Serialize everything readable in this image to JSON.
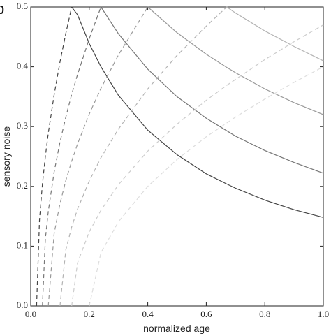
{
  "chart_data": {
    "type": "line",
    "panel_label": "b",
    "xlabel": "normalized age",
    "ylabel": "sensory noise",
    "xlim": [
      0,
      1
    ],
    "ylim": [
      0,
      0.5
    ],
    "xticks": [
      {
        "value": 0,
        "label": "0.0"
      },
      0.2,
      0.4,
      0.6,
      0.8,
      {
        "value": 1,
        "label": "1.0"
      }
    ],
    "yticks": [
      {
        "value": 0,
        "label": "0.0"
      },
      0.1,
      0.2,
      0.3,
      0.4,
      0.5
    ],
    "x": [
      0.02,
      0.03,
      0.04,
      0.05,
      0.06,
      0.08,
      0.1,
      0.12,
      0.14,
      0.16,
      0.2,
      0.24,
      0.3,
      0.4,
      0.5,
      0.6,
      0.67,
      0.7,
      0.8,
      0.9,
      1.0
    ],
    "series": [
      {
        "color": "#444444",
        "dashed": false,
        "values": [
          null,
          null,
          null,
          null,
          null,
          null,
          null,
          null,
          0.5,
          0.487,
          0.439,
          0.4,
          0.352,
          0.294,
          0.253,
          0.221,
          0.204,
          0.197,
          0.177,
          0.161,
          0.148
        ]
      },
      {
        "color": "#777777",
        "dashed": false,
        "values": [
          null,
          null,
          null,
          null,
          null,
          null,
          null,
          null,
          null,
          null,
          null,
          0.5,
          0.455,
          0.396,
          0.35,
          0.314,
          0.293,
          0.284,
          0.26,
          0.24,
          0.222
        ]
      },
      {
        "color": "#999999",
        "dashed": false,
        "values": [
          null,
          null,
          null,
          null,
          null,
          null,
          null,
          null,
          null,
          null,
          null,
          null,
          null,
          0.5,
          0.457,
          0.421,
          0.399,
          0.39,
          0.363,
          0.34,
          0.32
        ]
      },
      {
        "color": "#b3b3b3",
        "dashed": false,
        "values": [
          null,
          null,
          null,
          null,
          null,
          null,
          null,
          null,
          null,
          null,
          null,
          null,
          null,
          null,
          null,
          null,
          0.5,
          0.49,
          0.46,
          0.434,
          0.41
        ]
      },
      {
        "color": "#444444",
        "dashed": true,
        "values": [
          0,
          0.144,
          0.204,
          0.25,
          0.289,
          0.353,
          0.408,
          0.456,
          0.5,
          null,
          null,
          null,
          null,
          null,
          null,
          null,
          null,
          null,
          null,
          null,
          null
        ]
      },
      {
        "color": "#777777",
        "dashed": true,
        "values": [
          null,
          null,
          0,
          0.112,
          0.158,
          0.224,
          0.274,
          0.316,
          0.354,
          0.387,
          0.447,
          0.5,
          null,
          null,
          null,
          null,
          null,
          null,
          null,
          null,
          null
        ]
      },
      {
        "color": "#999999",
        "dashed": true,
        "values": [
          null,
          null,
          null,
          null,
          0,
          0.121,
          0.171,
          0.21,
          0.242,
          0.271,
          0.321,
          0.364,
          0.42,
          0.5,
          null,
          null,
          null,
          null,
          null,
          null,
          null
        ]
      },
      {
        "color": "#b3b3b3",
        "dashed": true,
        "values": [
          null,
          null,
          null,
          null,
          null,
          null,
          0,
          0.094,
          0.132,
          0.162,
          0.209,
          0.248,
          0.296,
          0.363,
          0.419,
          0.468,
          0.5,
          null,
          null,
          null,
          null
        ]
      },
      {
        "color": "#cccccc",
        "dashed": true,
        "values": [
          null,
          null,
          null,
          null,
          null,
          null,
          null,
          null,
          0,
          0.072,
          0.124,
          0.16,
          0.203,
          0.259,
          0.304,
          0.344,
          0.369,
          0.379,
          0.412,
          0.442,
          0.47
        ]
      },
      {
        "color": "#dddddd",
        "dashed": true,
        "values": [
          null,
          null,
          null,
          null,
          null,
          null,
          null,
          null,
          null,
          null,
          0,
          0.089,
          0.141,
          0.2,
          0.245,
          0.283,
          0.306,
          0.316,
          0.346,
          0.374,
          0.4
        ]
      }
    ]
  }
}
